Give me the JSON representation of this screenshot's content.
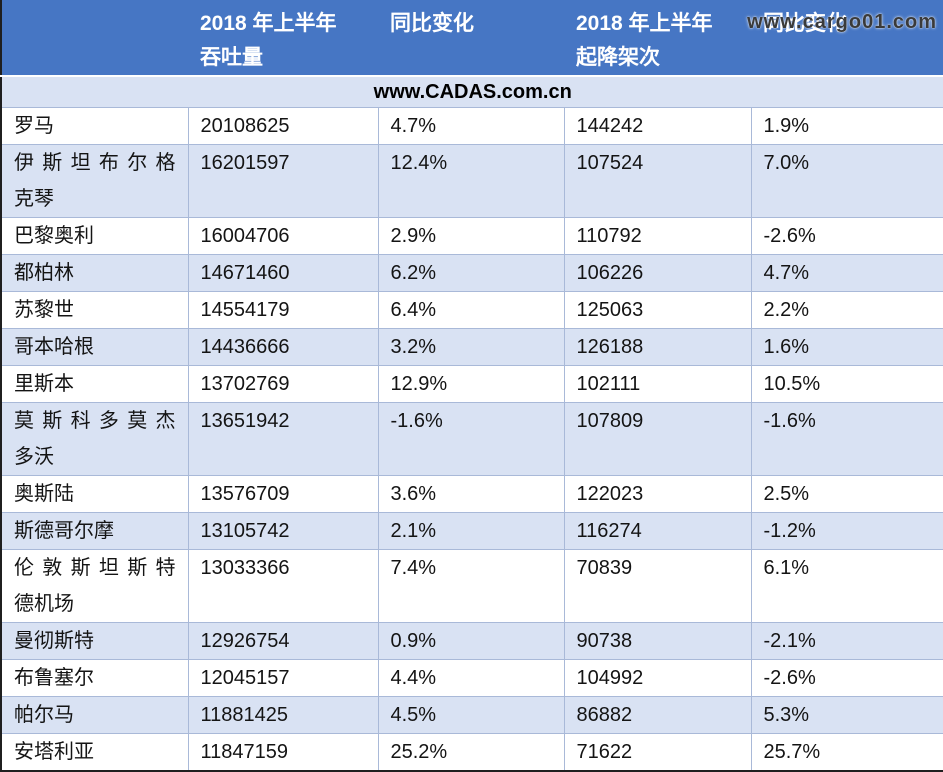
{
  "watermark": "www.cargo01.com",
  "banner": "www.CADAS.com.cn",
  "table": {
    "headers": [
      "",
      "2018 年上半年\n吞吐量",
      "同比变化",
      "2018 年上半年\n起降架次",
      "同比变化"
    ],
    "rows": [
      [
        "罗马",
        "20108625",
        "4.7%",
        "144242",
        "1.9%"
      ],
      [
        "伊斯坦布尔格\n克琴",
        "16201597",
        "12.4%",
        "107524",
        "7.0%"
      ],
      [
        "巴黎奥利",
        "16004706",
        "2.9%",
        "110792",
        "-2.6%"
      ],
      [
        "都柏林",
        "14671460",
        "6.2%",
        "106226",
        "4.7%"
      ],
      [
        "苏黎世",
        "14554179",
        "6.4%",
        "125063",
        "2.2%"
      ],
      [
        "哥本哈根",
        "14436666",
        "3.2%",
        "126188",
        "1.6%"
      ],
      [
        "里斯本",
        "13702769",
        "12.9%",
        "102111",
        "10.5%"
      ],
      [
        "莫斯科多莫杰\n多沃",
        "13651942",
        "-1.6%",
        "107809",
        "-1.6%"
      ],
      [
        "奥斯陆",
        "13576709",
        "3.6%",
        "122023",
        "2.5%"
      ],
      [
        "斯德哥尔摩",
        "13105742",
        "2.1%",
        "116274",
        "-1.2%"
      ],
      [
        "伦敦斯坦斯特\n德机场",
        "13033366",
        "7.4%",
        "70839",
        "6.1%"
      ],
      [
        "曼彻斯特",
        "12926754",
        "0.9%",
        "90738",
        "-2.1%"
      ],
      [
        "布鲁塞尔",
        "12045157",
        "4.4%",
        "104992",
        "-2.6%"
      ],
      [
        "帕尔马",
        "11881425",
        "4.5%",
        "86882",
        "5.3%"
      ],
      [
        "安塔利亚",
        "11847159",
        "25.2%",
        "71622",
        "25.7%"
      ]
    ]
  },
  "colors": {
    "header_bg": "#4676c4",
    "stripe_bg": "#d9e2f3",
    "grid_line": "#a9b9d8",
    "outer_border": "#1f1f1f",
    "header_text": "#ffffff",
    "body_text": "#141414",
    "watermark_text": "#3a3a3a"
  }
}
